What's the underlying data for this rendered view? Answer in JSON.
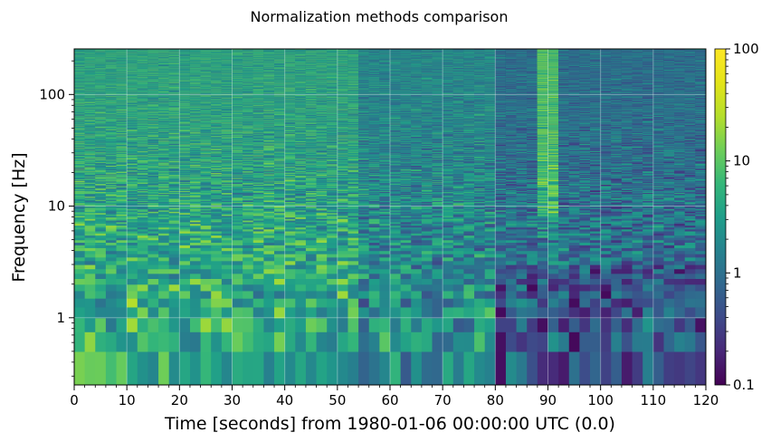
{
  "chart_data": {
    "type": "heatmap",
    "title": "Normalization methods comparison",
    "xlabel": "Time [seconds] from 1980-01-06 00:00:00 UTC (0.0)",
    "ylabel": "Frequency [Hz]",
    "xlim": [
      0,
      120
    ],
    "ylim": [
      0.25,
      256
    ],
    "yscale": "log",
    "x_ticks": [
      0,
      10,
      20,
      30,
      40,
      50,
      60,
      70,
      80,
      90,
      100,
      110,
      120
    ],
    "x_tick_labels": [
      "0",
      "10",
      "20",
      "30",
      "40",
      "50",
      "60",
      "70",
      "80",
      "90",
      "100",
      "110",
      "120"
    ],
    "y_ticks": [
      1,
      10,
      100
    ],
    "y_tick_labels": [
      "1",
      "10",
      "100"
    ],
    "colorbar": {
      "scale": "log",
      "range": [
        0.1,
        100
      ],
      "ticks": [
        0.1,
        1,
        10,
        100
      ],
      "tick_labels": [
        "0.1",
        "1",
        "10",
        "100"
      ],
      "colormap": "viridis"
    },
    "grid": true,
    "time_step_s": 2,
    "freq_resolution_hz": 0.25,
    "description_of_values": "Normalized spectral power per time–frequency pixel; typical values ~1–10 before t≈55 s, lower (~0.1–1) after, with a brighter vertical band near t≈88–90 s at high frequency and bright low-frequency patches near t≈20 s and t≈40 s."
  }
}
